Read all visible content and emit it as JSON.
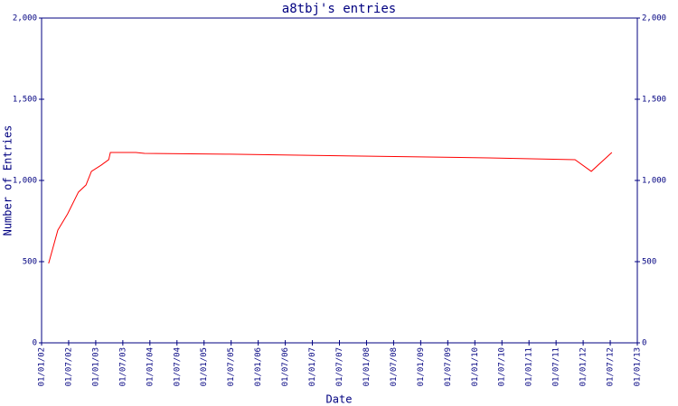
{
  "chart_data": {
    "type": "line",
    "title": "a8tbj's entries",
    "x_label": "Date",
    "y_label": "Number of Entries",
    "x": [
      2002.13,
      2002.3,
      2002.48,
      2002.68,
      2002.82,
      2002.92,
      2003.1,
      2003.24,
      2003.27,
      2003.74,
      2003.9,
      2005.4,
      2007.91,
      2010.25,
      2011.85,
      2012.15,
      2012.53
    ],
    "series": [
      {
        "name": "entries",
        "color": "#ff0000",
        "values": [
          489,
          694,
          794,
          928,
          972,
          1056,
          1094,
          1128,
          1172,
          1172,
          1167,
          1162,
          1150,
          1139,
          1128,
          1056,
          1172
        ]
      }
    ],
    "xlim": [
      2002,
      2013
    ],
    "xticks": [
      {
        "value": 2002,
        "label": "01/01/02"
      },
      {
        "value": 2002.5,
        "label": "01/07/02"
      },
      {
        "value": 2003,
        "label": "01/01/03"
      },
      {
        "value": 2003.5,
        "label": "01/07/03"
      },
      {
        "value": 2004,
        "label": "01/01/04"
      },
      {
        "value": 2004.5,
        "label": "01/07/04"
      },
      {
        "value": 2005,
        "label": "01/01/05"
      },
      {
        "value": 2005.5,
        "label": "01/07/05"
      },
      {
        "value": 2006,
        "label": "01/01/06"
      },
      {
        "value": 2006.5,
        "label": "01/07/06"
      },
      {
        "value": 2007,
        "label": "01/01/07"
      },
      {
        "value": 2007.5,
        "label": "01/07/07"
      },
      {
        "value": 2008,
        "label": "01/01/08"
      },
      {
        "value": 2008.5,
        "label": "01/07/08"
      },
      {
        "value": 2009,
        "label": "01/01/09"
      },
      {
        "value": 2009.5,
        "label": "01/07/09"
      },
      {
        "value": 2010,
        "label": "01/01/10"
      },
      {
        "value": 2010.5,
        "label": "01/07/10"
      },
      {
        "value": 2011,
        "label": "01/01/11"
      },
      {
        "value": 2011.5,
        "label": "01/07/11"
      },
      {
        "value": 2012,
        "label": "01/01/12"
      },
      {
        "value": 2012.5,
        "label": "01/07/12"
      },
      {
        "value": 2013,
        "label": "01/01/13"
      }
    ],
    "ylim": [
      0,
      2000
    ],
    "yticks": [
      0,
      500,
      {
        "value": 1000,
        "label": "1,000"
      },
      {
        "value": 1500,
        "label": "1,500"
      },
      {
        "value": 2000,
        "label": "2,000"
      }
    ],
    "axis_color": "#000080",
    "grid": false
  }
}
